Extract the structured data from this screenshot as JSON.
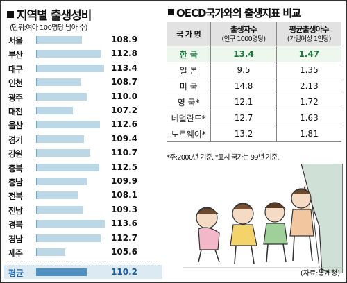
{
  "left": {
    "title": "지역별 출생성비",
    "subtitle": "(단위:여아 100명당 남아 수)",
    "regions": [
      {
        "name": "서울",
        "value": "108.9"
      },
      {
        "name": "부산",
        "value": "112.8"
      },
      {
        "name": "대구",
        "value": "113.4"
      },
      {
        "name": "인천",
        "value": "108.7"
      },
      {
        "name": "광주",
        "value": "110.0"
      },
      {
        "name": "대전",
        "value": "107.2"
      },
      {
        "name": "울산",
        "value": "112.6"
      },
      {
        "name": "경기",
        "value": "109.4"
      },
      {
        "name": "강원",
        "value": "110.7"
      },
      {
        "name": "충북",
        "value": "112.5"
      },
      {
        "name": "충남",
        "value": "109.9"
      },
      {
        "name": "전북",
        "value": "108.1"
      },
      {
        "name": "전남",
        "value": "109.3"
      },
      {
        "name": "경북",
        "value": "113.6"
      },
      {
        "name": "경남",
        "value": "112.7"
      },
      {
        "name": "제주",
        "value": "105.6"
      }
    ],
    "average": {
      "name": "평균",
      "value": "110.2"
    }
  },
  "right": {
    "title": "OECD국가와의 출생지표 비교",
    "headers": {
      "country": "국 가 명",
      "births": "출생자수",
      "births_unit": "(인구 1000명당)",
      "fertility": "평균출생아수",
      "fertility_unit": "(가임여성 1인당)"
    },
    "rows": [
      {
        "country": "한   국",
        "births": "13.4",
        "fertility": "1.47"
      },
      {
        "country": "일   본",
        "births": "9.5",
        "fertility": "1.35"
      },
      {
        "country": "미   국",
        "births": "14.8",
        "fertility": "2.13"
      },
      {
        "country": "영   국*",
        "births": "12.1",
        "fertility": "1.72"
      },
      {
        "country": "네덜란드*",
        "births": "12.7",
        "fertility": "1.63"
      },
      {
        "country": "노르웨이*",
        "births": "13.2",
        "fertility": "1.81"
      }
    ],
    "note": "*주:2000년 기준. *표시 국가는 99년 기준.",
    "source": "(자료:통계청)"
  },
  "colors": {
    "bar": "#bcd7e5",
    "avg_bar": "#4f90c1",
    "highlight": "#1a7a3c"
  }
}
